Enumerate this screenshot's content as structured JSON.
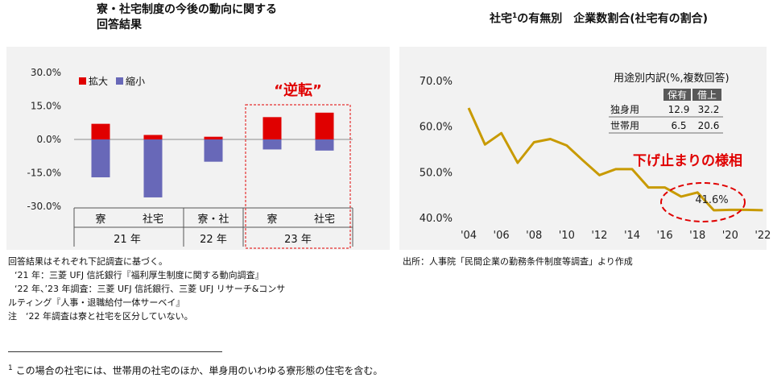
{
  "left_title": [
    "寮・社宅制度の今後の動向に関する",
    "回答結果"
  ],
  "right_title_main": "社宅",
  "right_title_sup": "1",
  "right_title_rest": "の有無別　企業数割合(社宅有の割合)",
  "reversal_label": "“逆転”",
  "floor_label": "下げ止まりの様相",
  "last_value_label": "41.6%",
  "inset": {
    "title": "用途別内訳(%,複数回答)",
    "col_headers": [
      "保有",
      "借上"
    ],
    "rows": [
      {
        "label": "独身用",
        "values": [
          "12.9",
          "32.2"
        ]
      },
      {
        "label": "世帯用",
        "values": [
          "6.5",
          "20.6"
        ]
      }
    ]
  },
  "left_notes": [
    "回答結果はそれぞれ下記調査に基づく。",
    "‘21 年：三菱 UFJ 信託銀行『福利厚生制度に関する動向調査』",
    "‘22 年、’23 年調査：三菱 UFJ 信託銀行、三菱 UFJ リサーチ&コンサ",
    "ルティング『人事・退職給付一体サーベイ』",
    "注　‘22 年調査は寮と社宅を区分していない。"
  ],
  "right_source": "出所：人事院「民間企業の勤務条件制度等調査」より作成",
  "footnote_mark": "1",
  "footnote_text": "この場合の社宅には、世帯用の社宅のほか、単身用のいわゆる寮形態の住宅を含む。",
  "chart_data": [
    {
      "type": "bar",
      "stacked": true,
      "categories": [
        "寮",
        "社宅",
        "寮・社",
        "寮",
        "社宅"
      ],
      "groups": [
        {
          "label": "21 年",
          "categories": [
            0,
            1
          ]
        },
        {
          "label": "22 年",
          "categories": [
            2
          ]
        },
        {
          "label": "23 年",
          "categories": [
            3,
            4
          ]
        }
      ],
      "series": [
        {
          "name": "拡大",
          "color": "#e00000",
          "values": [
            7.0,
            2.0,
            1.2,
            10.0,
            12.0
          ]
        },
        {
          "name": "縮小",
          "color": "#6868b8",
          "values": [
            -17.0,
            -26.0,
            -10.0,
            -4.5,
            -5.0
          ]
        }
      ],
      "yticks": [
        "30.0%",
        "15.0%",
        "0.0%",
        "-15.0%",
        "-30.0%"
      ],
      "ylim": [
        -30,
        30
      ],
      "legend": "top-left",
      "grid": false
    },
    {
      "type": "line",
      "x": [
        2004,
        2005,
        2006,
        2007,
        2008,
        2009,
        2010,
        2011,
        2012,
        2013,
        2014,
        2015,
        2016,
        2017,
        2018,
        2019,
        2020,
        2021,
        2022
      ],
      "values": [
        64.0,
        56.0,
        58.5,
        52.0,
        56.5,
        57.2,
        55.8,
        52.5,
        49.3,
        50.6,
        50.6,
        46.6,
        46.6,
        44.6,
        45.5,
        41.6,
        41.7,
        41.7,
        41.6
      ],
      "color": "#c89a00",
      "xticks": [
        "'04",
        "'06",
        "'08",
        "'10",
        "'12",
        "'14",
        "'16",
        "'18",
        "'20",
        "'22"
      ],
      "yticks": [
        "70.0%",
        "60.0%",
        "50.0%",
        "40.0%"
      ],
      "ylim": [
        40,
        70
      ],
      "grid": false
    }
  ]
}
